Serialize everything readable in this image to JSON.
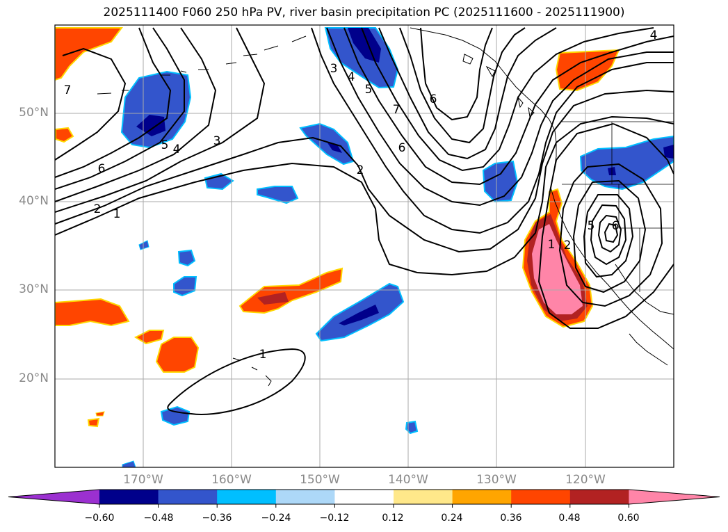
{
  "title": "2025111400 F060 250 hPa PV, river basin precipitation PC (2025111600 - 2025111900)",
  "lat_labels": [
    "50°N",
    "40°N",
    "30°N",
    "20°N"
  ],
  "lon_labels": [
    "170°W",
    "160°W",
    "150°W",
    "140°W",
    "130°W",
    "120°W"
  ],
  "contour_labels": [
    "1",
    "2",
    "3",
    "4",
    "5",
    "6",
    "7"
  ],
  "colorbar": {
    "ticks": [
      "−0.60",
      "−0.48",
      "−0.36",
      "−0.24",
      "−0.12",
      "0.12",
      "0.24",
      "0.36",
      "0.48",
      "0.60"
    ],
    "colors": [
      "#9b30d0",
      "#00008b",
      "#3355cc",
      "#00bfff",
      "#add8f8",
      "#ffffff",
      "#ffe88a",
      "#ffa500",
      "#ff4500",
      "#b22222",
      "#ff85a8"
    ]
  }
}
